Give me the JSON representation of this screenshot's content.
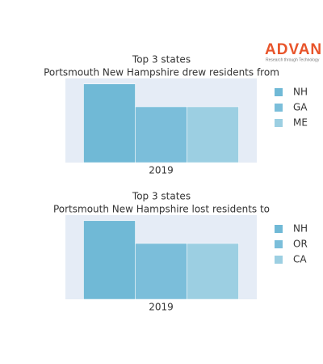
{
  "logo": {
    "name": "ADVAN",
    "tagline": "Research through Technology"
  },
  "chart_data": [
    {
      "type": "bar",
      "title": "Top 3 states",
      "subtitle": "Portsmouth New Hampshire drew residents from",
      "categories": [
        "2019"
      ],
      "series": [
        {
          "name": "NH",
          "color": "#70b9d6",
          "values": [
            100
          ]
        },
        {
          "name": "GA",
          "color": "#7bbeda",
          "values": [
            71
          ]
        },
        {
          "name": "ME",
          "color": "#9ccfe2",
          "values": [
            71
          ]
        }
      ],
      "ylim": [
        0,
        107
      ],
      "legend": "right"
    },
    {
      "type": "bar",
      "title": "Top 3 states",
      "subtitle": "Portsmouth New Hampshire lost residents to",
      "categories": [
        "2019"
      ],
      "series": [
        {
          "name": "NH",
          "color": "#70b9d6",
          "values": [
            100
          ]
        },
        {
          "name": "OR",
          "color": "#7bbeda",
          "values": [
            71
          ]
        },
        {
          "name": "CA",
          "color": "#9ccfe2",
          "values": [
            71
          ]
        }
      ],
      "ylim": [
        0,
        107
      ],
      "legend": "right"
    }
  ]
}
